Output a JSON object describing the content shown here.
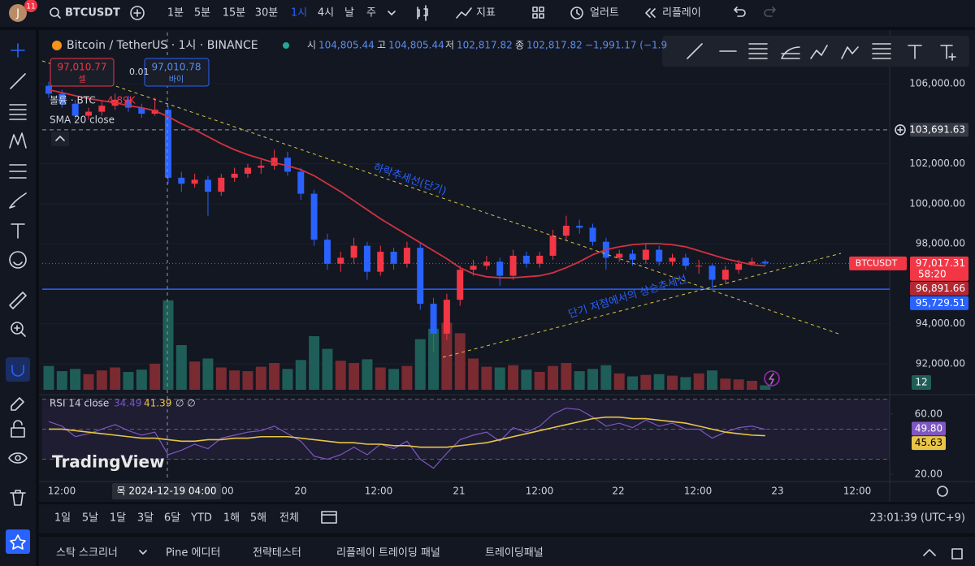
{
  "top_bar": {
    "avatar": "J",
    "badge": "11",
    "symbol": "BTCUSDT",
    "intervals": [
      "1분",
      "5분",
      "15분",
      "30분",
      "1시",
      "4시",
      "날",
      "주"
    ],
    "active_interval": 4,
    "indicators": "지표",
    "alerts": "얼러트",
    "replay": "리플레이"
  },
  "legend": {
    "title": "Bitcoin / TetherUS · 1시 · BINANCE",
    "ohlc": [
      {
        "label": "시",
        "value": "104,805.44"
      },
      {
        "label": "고",
        "value": "104,805.44"
      },
      {
        "label": "저",
        "value": "102,817.82"
      },
      {
        "label": "종",
        "value": "102,817.82"
      }
    ],
    "change": "−1,991.17 (−1.9",
    "sell_price": "97,010.77",
    "sell": "셀",
    "spread": "0.01",
    "buy_price": "97,010.78",
    "buy": "바이",
    "volume_label": "볼륨 · BTC",
    "volume_value": "4.89K",
    "sma_label": "SMA 20 close"
  },
  "chart_data": {
    "type": "candlestick",
    "ylim": [
      90700,
      108560
    ],
    "yticks": [
      {
        "value": 106000,
        "label": "106,000.00"
      },
      {
        "value": 102000,
        "label": "102,000.00"
      },
      {
        "value": 100000,
        "label": "100,000.00"
      },
      {
        "value": 98000,
        "label": "98,000.00"
      },
      {
        "value": 94000,
        "label": "94,000.00"
      },
      {
        "value": 92000,
        "label": "92,000.00"
      }
    ],
    "colors": {
      "up": "#f23645",
      "down": "#2962ff",
      "volume_up": "#7a2a31",
      "volume_down": "#1f5e58",
      "sma": "#d2323f"
    },
    "ohlc": [
      [
        105900,
        106100,
        105300,
        105500
      ],
      [
        105500,
        105700,
        104800,
        105000
      ],
      [
        105000,
        105200,
        104200,
        104400
      ],
      [
        104400,
        104800,
        104200,
        104600
      ],
      [
        104600,
        105100,
        104400,
        104900
      ],
      [
        104900,
        105500,
        104700,
        105200
      ],
      [
        105200,
        105400,
        104600,
        104800
      ],
      [
        104800,
        105000,
        104300,
        104500
      ],
      [
        104500,
        105300,
        104400,
        104700
      ],
      [
        104700,
        104900,
        101000,
        101300
      ],
      [
        101300,
        101600,
        100600,
        101000
      ],
      [
        101000,
        101500,
        100800,
        101200
      ],
      [
        101200,
        101400,
        99400,
        100600
      ],
      [
        100600,
        101500,
        100400,
        101300
      ],
      [
        101300,
        101800,
        101100,
        101500
      ],
      [
        101500,
        102000,
        101300,
        101800
      ],
      [
        101800,
        102200,
        101500,
        101900
      ],
      [
        101900,
        102700,
        101700,
        102300
      ],
      [
        102300,
        102600,
        101400,
        101600
      ],
      [
        101600,
        101800,
        100200,
        100500
      ],
      [
        100500,
        100700,
        97900,
        98200
      ],
      [
        98200,
        98500,
        96700,
        97000
      ],
      [
        97000,
        97600,
        96600,
        97300
      ],
      [
        97300,
        98300,
        97000,
        97900
      ],
      [
        97900,
        98100,
        96200,
        96600
      ],
      [
        96600,
        97900,
        96400,
        97600
      ],
      [
        97600,
        97800,
        96700,
        97000
      ],
      [
        97000,
        98100,
        96800,
        97800
      ],
      [
        97800,
        98000,
        94700,
        95000
      ],
      [
        95000,
        95300,
        92600,
        93500
      ],
      [
        93500,
        95500,
        93200,
        95200
      ],
      [
        95200,
        96900,
        94900,
        96700
      ],
      [
        96700,
        97200,
        96400,
        96900
      ],
      [
        96900,
        97400,
        96700,
        97100
      ],
      [
        97100,
        97300,
        95900,
        96400
      ],
      [
        96400,
        97700,
        96200,
        97400
      ],
      [
        97400,
        97600,
        96800,
        97000
      ],
      [
        97000,
        97600,
        96800,
        97400
      ],
      [
        97400,
        98700,
        97200,
        98400
      ],
      [
        98400,
        99400,
        98200,
        98900
      ],
      [
        98900,
        99200,
        98500,
        98800
      ],
      [
        98800,
        99000,
        97900,
        98100
      ],
      [
        98100,
        98300,
        96700,
        97300
      ],
      [
        97300,
        97700,
        97100,
        97500
      ],
      [
        97500,
        97700,
        96900,
        97200
      ],
      [
        97200,
        98000,
        97000,
        97700
      ],
      [
        97700,
        97900,
        96900,
        97100
      ],
      [
        97100,
        97500,
        96900,
        97300
      ],
      [
        97300,
        97500,
        96700,
        96900
      ],
      [
        96900,
        97200,
        96500,
        96900
      ],
      [
        96900,
        97000,
        95800,
        96200
      ],
      [
        96200,
        96900,
        96000,
        96700
      ],
      [
        96700,
        97200,
        96500,
        97000
      ],
      [
        97000,
        97300,
        96900,
        97100
      ],
      [
        97100,
        97200,
        96900,
        97017.31
      ]
    ],
    "volume": [
      3200,
      2500,
      2800,
      2100,
      2600,
      3000,
      2400,
      2700,
      3500,
      12000,
      6000,
      3800,
      4200,
      3000,
      2600,
      2500,
      3100,
      3600,
      2800,
      4000,
      7200,
      5500,
      3900,
      3600,
      4100,
      3000,
      2800,
      3200,
      6800,
      8200,
      9000,
      7600,
      4200,
      3100,
      3000,
      3300,
      2700,
      2400,
      3200,
      3600,
      2500,
      2800,
      3300,
      2200,
      1800,
      2000,
      2100,
      1900,
      1700,
      2200,
      2600,
      1500,
      1400,
      1200,
      600
    ],
    "sma": {
      "values": [
        105700,
        105550,
        105400,
        105250,
        105150,
        105050,
        104900,
        104800,
        104650,
        104350,
        104000,
        103700,
        103350,
        103000,
        102700,
        102450,
        102250,
        102050,
        101900,
        101700,
        101400,
        101000,
        100600,
        100150,
        99700,
        99250,
        98850,
        98450,
        98050,
        97650,
        97250,
        96800,
        96500,
        96350,
        96300,
        96300,
        96350,
        96400,
        96550,
        96800,
        97100,
        97450,
        97700,
        97850,
        97950,
        98000,
        98000,
        97950,
        97850,
        97650,
        97450,
        97250,
        97100,
        96950,
        96891.66
      ]
    },
    "price_lines": [
      {
        "value": 103691.63,
        "label": "103,691.63",
        "color": "#363a45",
        "line": "dashed"
      },
      {
        "name": "BTCUSDT",
        "value": 97017.31,
        "label": "97,017.31",
        "countdown": "58:20",
        "color": "#f23645",
        "line": "dotted"
      },
      {
        "value": 96891.66,
        "label": "96,891.66",
        "color": "#b22833",
        "line": null
      },
      {
        "value": 95729.51,
        "label": "95,729.51",
        "color": "#2962ff",
        "line": "solid"
      }
    ],
    "volume_badge": "12",
    "annotations": [
      "하락추세선(단기)",
      "단기 저점에서의 상승추세선"
    ],
    "time_labels": [
      "12:00",
      "20",
      "12:00",
      "21",
      "12:00",
      "22",
      "12:00",
      "23",
      "12:00"
    ],
    "crosshair_time": "목 2024-12-19 04:00",
    "partial_time": "00"
  },
  "rsi": {
    "title": "RSI 14 close",
    "legend_values": [
      "34.49",
      "41.39"
    ],
    "extra": "∅ ∅",
    "ylim": [
      15.7,
      69.7
    ],
    "yticks": [
      {
        "value": 60,
        "label": "60.00"
      },
      {
        "value": 20,
        "label": "20.00"
      }
    ],
    "levels": [
      70,
      50,
      30
    ],
    "series": [
      {
        "color": "#7e57c2",
        "values": [
          55,
          52,
          45,
          47,
          50,
          53,
          49,
          46,
          48,
          33,
          36,
          40,
          37,
          44,
          46,
          48,
          49,
          52,
          47,
          42,
          32,
          30,
          33,
          38,
          33,
          40,
          37,
          42,
          30,
          24,
          34,
          43,
          46,
          48,
          42,
          51,
          48,
          52,
          60,
          64,
          63,
          58,
          52,
          54,
          51,
          56,
          52,
          54,
          50,
          50,
          44,
          48,
          51,
          52,
          49.8
        ],
        "last_label": "49.80"
      },
      {
        "color": "#e8c547",
        "values": [
          50,
          50,
          49,
          48,
          47,
          46,
          45,
          44,
          44,
          43,
          42,
          42,
          43,
          43,
          44,
          44,
          45,
          45,
          45,
          44,
          43,
          42,
          41,
          41,
          40,
          40,
          39,
          39,
          38,
          38,
          38,
          39,
          40,
          41,
          43,
          45,
          47,
          49,
          51,
          53,
          55,
          57,
          58,
          58,
          57,
          57,
          56,
          55,
          54,
          52,
          50,
          48,
          47,
          46,
          45.63
        ],
        "last_label": "45.63"
      }
    ]
  },
  "watermark": "TradingView",
  "range_bar": {
    "ranges": [
      "1일",
      "5날",
      "1달",
      "3달",
      "6달",
      "YTD",
      "1해",
      "5해",
      "전체"
    ],
    "clock": "23:01:39 (UTC+9)"
  },
  "bottom_panel": {
    "tabs": [
      "스탁 스크리너",
      "Pine 에디터",
      "전략테스터",
      "리플레이 트레이딩 패널",
      "트레이딩패널"
    ]
  }
}
